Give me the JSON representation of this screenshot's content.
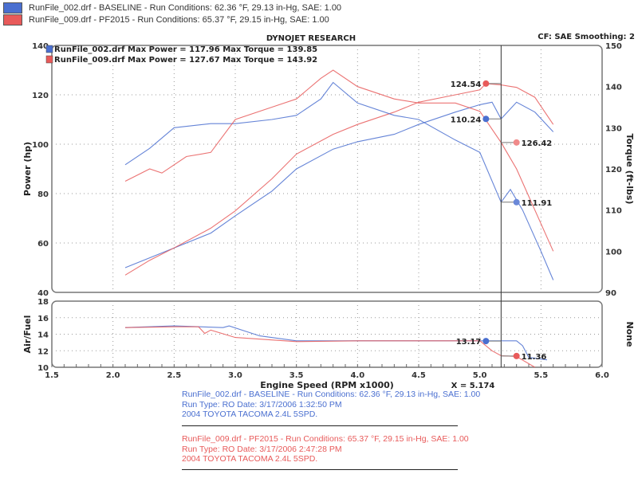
{
  "header": {
    "runs": [
      {
        "text": "RunFile_002.drf - BASELINE  -  Run Conditions: 62.36 °F, 29.13 in-Hg, SAE: 1.00",
        "color": "#4a6fd0"
      },
      {
        "text": "RunFile_009.drf - PF2015  -  Run Conditions: 65.37 °F, 29.15 in-Hg, SAE: 1.00",
        "color": "#e85a5a"
      }
    ]
  },
  "chart_data": {
    "type": "line",
    "title": "DYNOJET RESEARCH",
    "subtitle": "CF: SAE  Smoothing: 2",
    "legend": [
      "RunFile_002.drf Max Power = 117.96      Max Torque = 139.85",
      "RunFile_009.drf Max Power = 127.67      Max Torque = 143.92"
    ],
    "xlabel": "Engine Speed (RPM x1000)",
    "xlim": [
      1.5,
      6.0
    ],
    "xticks": [
      "1.5",
      "2.0",
      "2.5",
      "3.0",
      "3.5",
      "4.0",
      "4.5",
      "5.0",
      "5.5",
      "6.0"
    ],
    "cursor": {
      "x": 5.174,
      "label": "X = 5.174"
    },
    "main": {
      "ylabel": "Power (hp)",
      "ylim": [
        40,
        140
      ],
      "yticks": [
        "40",
        "60",
        "80",
        "100",
        "120",
        "140"
      ],
      "y2label": "Torque (ft-lbs)",
      "y2lim": [
        90,
        150
      ],
      "y2ticks": [
        "90",
        "100",
        "110",
        "120",
        "130",
        "140",
        "150"
      ],
      "series": [
        {
          "name": "RunFile_002.drf Power",
          "axis": "y",
          "color": "#4a6fd0",
          "x": [
            2.1,
            2.3,
            2.5,
            2.8,
            3.0,
            3.3,
            3.5,
            3.8,
            4.0,
            4.3,
            4.5,
            4.8,
            5.0,
            5.1,
            5.174,
            5.3,
            5.45,
            5.6
          ],
          "y": [
            50,
            54,
            58,
            64,
            71,
            81,
            90,
            98,
            101,
            104,
            108,
            113,
            116,
            117,
            110.24,
            117,
            113,
            105
          ]
        },
        {
          "name": "RunFile_009.drf Power",
          "axis": "y",
          "color": "#e85a5a",
          "x": [
            2.1,
            2.3,
            2.5,
            2.8,
            3.0,
            3.3,
            3.5,
            3.8,
            4.0,
            4.3,
            4.5,
            4.8,
            5.0,
            5.05,
            5.174,
            5.3,
            5.45,
            5.6
          ],
          "y": [
            47,
            53,
            58,
            66,
            73,
            86,
            96,
            104,
            108,
            113,
            117,
            120,
            122,
            124.54,
            124,
            123,
            119,
            108
          ]
        },
        {
          "name": "RunFile_002.drf Torque",
          "axis": "y2",
          "color": "#4a6fd0",
          "x": [
            2.1,
            2.3,
            2.5,
            2.8,
            3.0,
            3.3,
            3.5,
            3.7,
            3.8,
            4.0,
            4.3,
            4.5,
            4.8,
            5.0,
            5.174,
            5.25,
            5.35,
            5.5,
            5.6
          ],
          "y": [
            121,
            125,
            130,
            131,
            131,
            132,
            133,
            137,
            141,
            136,
            133,
            132,
            127,
            124,
            111.91,
            115,
            110,
            100,
            93
          ]
        },
        {
          "name": "RunFile_009.drf Torque",
          "axis": "y2",
          "color": "#e85a5a",
          "x": [
            2.1,
            2.3,
            2.4,
            2.6,
            2.8,
            3.0,
            3.3,
            3.5,
            3.7,
            3.8,
            4.0,
            4.3,
            4.5,
            4.8,
            5.0,
            5.174,
            5.3,
            5.45,
            5.6
          ],
          "y": [
            117,
            120,
            119,
            123,
            124,
            132,
            135,
            137,
            142,
            144,
            140,
            137,
            136,
            136,
            134,
            126.42,
            120,
            110,
            100
          ]
        }
      ],
      "markers": [
        {
          "x": 5.05,
          "y": 124.54,
          "axis": "y",
          "label": "124.54",
          "color": "#e85a5a"
        },
        {
          "x": 5.05,
          "y": 110.24,
          "axis": "y",
          "label": "110.24",
          "color": "#4a6fd0"
        },
        {
          "x": 5.3,
          "y": 126.42,
          "axis": "y2",
          "label": "126.42",
          "color": "#f08a8a"
        },
        {
          "x": 5.3,
          "y": 111.91,
          "axis": "y2",
          "label": "111.91",
          "color": "#6a88d8"
        }
      ]
    },
    "af": {
      "ylabel": "Air/Fuel",
      "ylim": [
        10,
        18
      ],
      "yticks": [
        "10",
        "12",
        "14",
        "16",
        "18"
      ],
      "y2label": "None",
      "series": [
        {
          "name": "RunFile_002.drf Air/Fuel",
          "color": "#4a6fd0",
          "x": [
            2.1,
            2.5,
            2.9,
            2.95,
            3.2,
            3.5,
            4.0,
            4.5,
            5.0,
            5.3,
            5.35,
            5.4,
            5.55
          ],
          "y": [
            14.8,
            15,
            14.8,
            15,
            13.8,
            13.2,
            13.2,
            13.2,
            13.2,
            13.2,
            12.6,
            11.2,
            10.9
          ]
        },
        {
          "name": "RunFile_009.drf Air/Fuel",
          "color": "#e85a5a",
          "x": [
            2.1,
            2.5,
            2.7,
            2.75,
            2.8,
            3.0,
            3.5,
            4.0,
            5.0,
            5.1,
            5.174,
            5.3,
            5.45
          ],
          "y": [
            14.8,
            14.9,
            14.9,
            14.1,
            14.5,
            13.6,
            13.1,
            13.2,
            13.2,
            12,
            11.4,
            11.3,
            10
          ]
        }
      ],
      "markers": [
        {
          "x": 5.05,
          "y": 13.17,
          "label": "13.17",
          "color": "#4a6fd0"
        },
        {
          "x": 5.3,
          "y": 11.36,
          "label": "11.36",
          "color": "#e85a5a"
        }
      ]
    }
  },
  "footer": [
    {
      "color": "#4a6fd0",
      "lines": [
        "RunFile_002.drf - BASELINE  -  Run Conditions: 62.36 °F, 29.13 in-Hg, SAE: 1.00",
        "Run Type: RO  Date: 3/17/2006 1:32:50 PM",
        "2004 TOYOTA TACOMA 2.4L 5SPD."
      ]
    },
    {
      "color": "#e85a5a",
      "lines": [
        "RunFile_009.drf - PF2015  -  Run Conditions: 65.37 °F, 29.15 in-Hg, SAE: 1.00",
        "Run Type: RO  Date: 3/17/2006 2:47:28 PM",
        "2004 TOYOTA TACOMA 2.4L 5SPD."
      ]
    }
  ]
}
